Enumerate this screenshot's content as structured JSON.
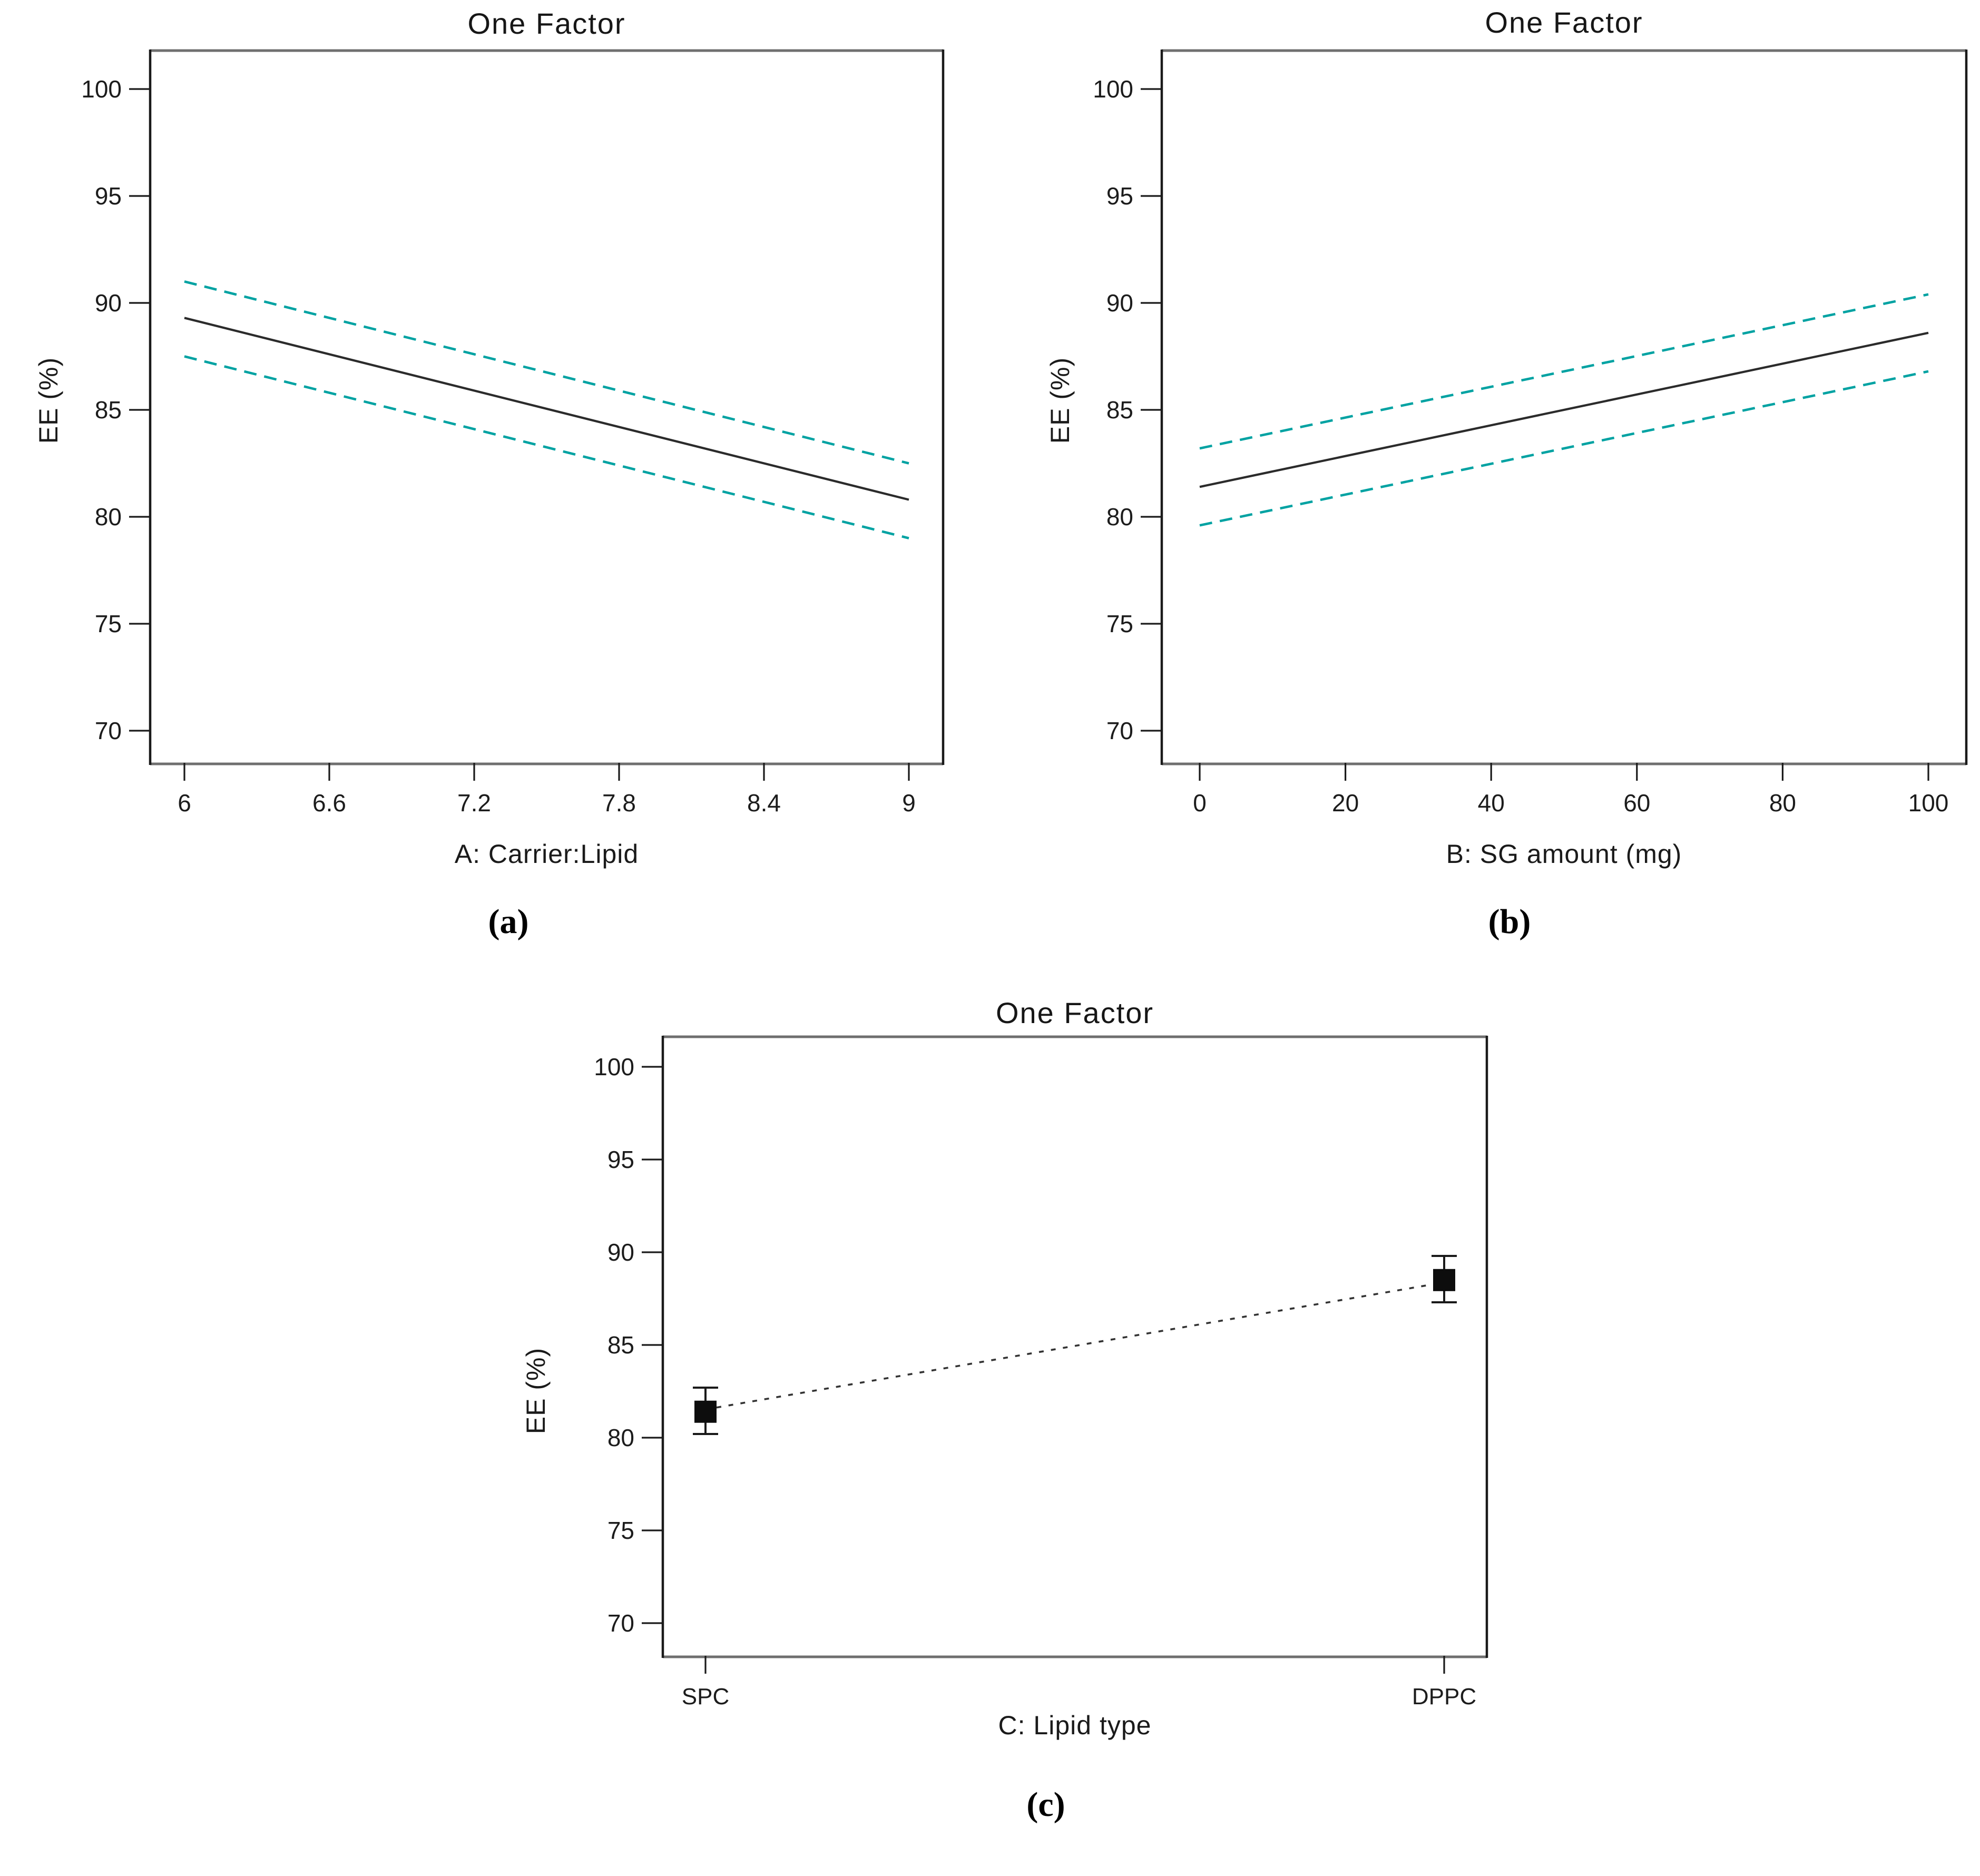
{
  "page": {
    "background_color": "#ffffff",
    "description": "Three one-factor effect plots for encapsulation efficiency (EE %)"
  },
  "colors": {
    "mean_line": "#2b2b2b",
    "confidence_band": "#00a2a2",
    "frame_side": "#1a1a1a",
    "frame_top_bottom": "#6f6f6f",
    "tick": "#1a1a1a",
    "tick_label": "#1c1c1c",
    "marker": "#0d0d0d",
    "error_bar": "#1a1a1a",
    "connector": "#333333"
  },
  "chart_data": [
    {
      "id": "a",
      "type": "line",
      "title": "One Factor",
      "xlabel": "A: Carrier:Lipid",
      "ylabel": "EE (%)",
      "caption": "(a)",
      "x_ticks": [
        "6",
        "6.6",
        "7.2",
        "7.8",
        "8.4",
        "9"
      ],
      "x_range": [
        6,
        9
      ],
      "y_ticks": [
        100,
        95,
        90,
        85,
        80,
        75,
        70
      ],
      "ylim": [
        68.5,
        101.7
      ],
      "grid": false,
      "legend": "none",
      "series": [
        {
          "name": "predicted-mean",
          "style": "solid",
          "points": [
            [
              6,
              89.3
            ],
            [
              9,
              80.8
            ]
          ]
        },
        {
          "name": "ci-upper",
          "style": "dashed",
          "points": [
            [
              6,
              91.0
            ],
            [
              9,
              82.5
            ]
          ]
        },
        {
          "name": "ci-lower",
          "style": "dashed",
          "points": [
            [
              6,
              87.5
            ],
            [
              9,
              79.0
            ]
          ]
        }
      ]
    },
    {
      "id": "b",
      "type": "line",
      "title": "One Factor",
      "xlabel": "B: SG amount (mg)",
      "ylabel": "EE (%)",
      "caption": "(b)",
      "x_ticks": [
        "0",
        "20",
        "40",
        "60",
        "80",
        "100"
      ],
      "x_range": [
        0,
        100
      ],
      "y_ticks": [
        100,
        95,
        90,
        85,
        80,
        75,
        70
      ],
      "ylim": [
        68.5,
        101.7
      ],
      "grid": false,
      "legend": "none",
      "series": [
        {
          "name": "predicted-mean",
          "style": "solid",
          "points": [
            [
              0,
              81.4
            ],
            [
              100,
              88.6
            ]
          ]
        },
        {
          "name": "ci-upper",
          "style": "dashed",
          "points": [
            [
              0,
              83.2
            ],
            [
              100,
              90.4
            ]
          ]
        },
        {
          "name": "ci-lower",
          "style": "dashed",
          "points": [
            [
              0,
              79.6
            ],
            [
              100,
              86.8
            ]
          ]
        }
      ]
    },
    {
      "id": "c",
      "type": "scatter",
      "title": "One Factor",
      "xlabel": "C: Lipid type",
      "ylabel": "EE (%)",
      "caption": "(c)",
      "categories": [
        "SPC",
        "DPPC"
      ],
      "values": [
        81.4,
        88.5
      ],
      "error_low": [
        80.2,
        87.3
      ],
      "error_high": [
        82.7,
        89.8
      ],
      "y_ticks": [
        100,
        95,
        90,
        85,
        80,
        75,
        70
      ],
      "ylim": [
        68.4,
        101.6
      ],
      "grid": false,
      "legend": "none",
      "marker": "square",
      "connector_style": "dotted"
    }
  ]
}
